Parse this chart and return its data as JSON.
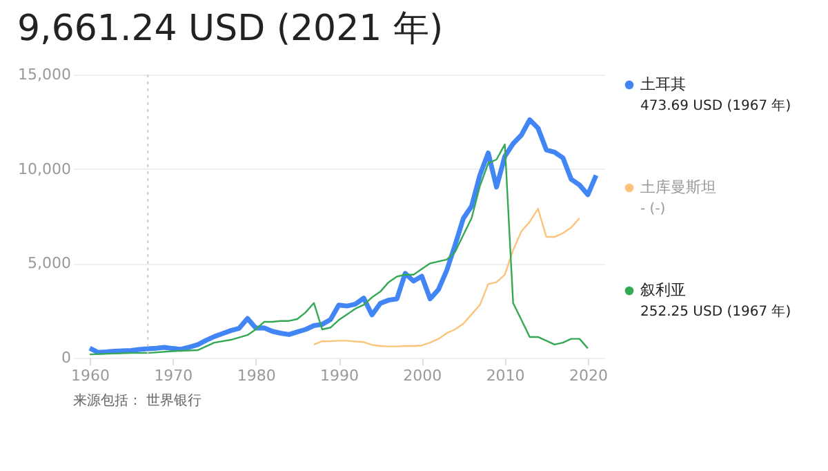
{
  "chart_data": {
    "type": "line",
    "title": "9,661.24 USD (2021 年)",
    "xlim": [
      1958,
      2022
    ],
    "xticks": [
      1960,
      1970,
      1980,
      1990,
      2000,
      2010,
      2020
    ],
    "ylim": [
      0,
      15000
    ],
    "yticks": [
      {
        "value": 0,
        "label": "0"
      },
      {
        "value": 5000,
        "label": "5,000"
      },
      {
        "value": 10000,
        "label": "10,000"
      },
      {
        "value": 15000,
        "label": "15,000"
      }
    ],
    "grid": "y",
    "legend": "right",
    "line_style": "solid",
    "ref_lines": [
      {
        "axis": "x",
        "value": 1967,
        "label": null,
        "color": "#cccccc",
        "line_style": "dotted"
      }
    ],
    "series": [
      {
        "name": "土耳其",
        "color": "#4285f4",
        "x": [
          1960,
          1961,
          1962,
          1963,
          1964,
          1965,
          1966,
          1967,
          1968,
          1969,
          1970,
          1971,
          1972,
          1973,
          1974,
          1975,
          1976,
          1977,
          1978,
          1979,
          1980,
          1981,
          1982,
          1983,
          1984,
          1985,
          1986,
          1987,
          1988,
          1989,
          1990,
          1991,
          1992,
          1993,
          1994,
          1995,
          1996,
          1997,
          1998,
          1999,
          2000,
          2001,
          2002,
          2003,
          2004,
          2005,
          2006,
          2007,
          2008,
          2009,
          2010,
          2011,
          2012,
          2013,
          2014,
          2015,
          2016,
          2017,
          2018,
          2019,
          2020,
          2021
        ],
        "values": [
          510,
          280,
          310,
          350,
          370,
          385,
          440,
          473.69,
          500,
          550,
          490,
          450,
          560,
          690,
          920,
          1120,
          1280,
          1440,
          1560,
          2080,
          1570,
          1580,
          1400,
          1300,
          1230,
          1370,
          1500,
          1700,
          1770,
          2020,
          2790,
          2740,
          2840,
          3160,
          2270,
          2880,
          3050,
          3120,
          4470,
          4060,
          4320,
          3120,
          3610,
          4620,
          5960,
          7380,
          8030,
          9680,
          10850,
          9040,
          10670,
          11340,
          11800,
          12610,
          12160,
          11010,
          10890,
          10590,
          9450,
          9150,
          8640,
          9661.24
        ]
      },
      {
        "name": "土库曼斯坦",
        "color": "#fbc47a",
        "x": [
          1987,
          1988,
          1989,
          1990,
          1991,
          1992,
          1993,
          1994,
          1995,
          1996,
          1997,
          1998,
          1999,
          2000,
          2001,
          2002,
          2003,
          2004,
          2005,
          2006,
          2007,
          2008,
          2009,
          2010,
          2011,
          2012,
          2013,
          2014,
          2015,
          2016,
          2017,
          2018,
          2019
        ],
        "values": [
          700,
          870,
          880,
          900,
          900,
          860,
          830,
          680,
          620,
          600,
          600,
          620,
          620,
          650,
          800,
          1000,
          1300,
          1500,
          1800,
          2300,
          2800,
          3900,
          4000,
          4400,
          5700,
          6700,
          7200,
          7900,
          6400,
          6400,
          6600,
          6900,
          7400
        ]
      },
      {
        "name": "叙利亚",
        "color": "#34a853",
        "x": [
          1960,
          1965,
          1967,
          1970,
          1973,
          1975,
          1977,
          1979,
          1980,
          1981,
          1982,
          1983,
          1984,
          1985,
          1986,
          1987,
          1988,
          1989,
          1990,
          1991,
          1992,
          1993,
          1994,
          1995,
          1996,
          1997,
          1998,
          1999,
          2000,
          2001,
          2002,
          2003,
          2004,
          2005,
          2006,
          2007,
          2008,
          2009,
          2010,
          2011,
          2012,
          2013,
          2014,
          2015,
          2016,
          2017,
          2018,
          2019,
          2020
        ],
        "values": [
          180,
          250,
          252.25,
          350,
          400,
          800,
          950,
          1200,
          1500,
          1900,
          1900,
          1950,
          1950,
          2050,
          2400,
          2900,
          1500,
          1600,
          2000,
          2300,
          2600,
          2800,
          3200,
          3500,
          4000,
          4300,
          4400,
          4400,
          4700,
          5000,
          5100,
          5200,
          5600,
          6500,
          7400,
          9100,
          10300,
          10500,
          11300,
          2900,
          2000,
          1100,
          1100,
          900,
          700,
          800,
          1000,
          1000,
          500
        ]
      }
    ],
    "annotations": [
      "473.69 USD (1967 年)",
      "- (-)",
      "252.25 USD (1967 年)",
      "来源包括： 世界银行"
    ]
  }
}
